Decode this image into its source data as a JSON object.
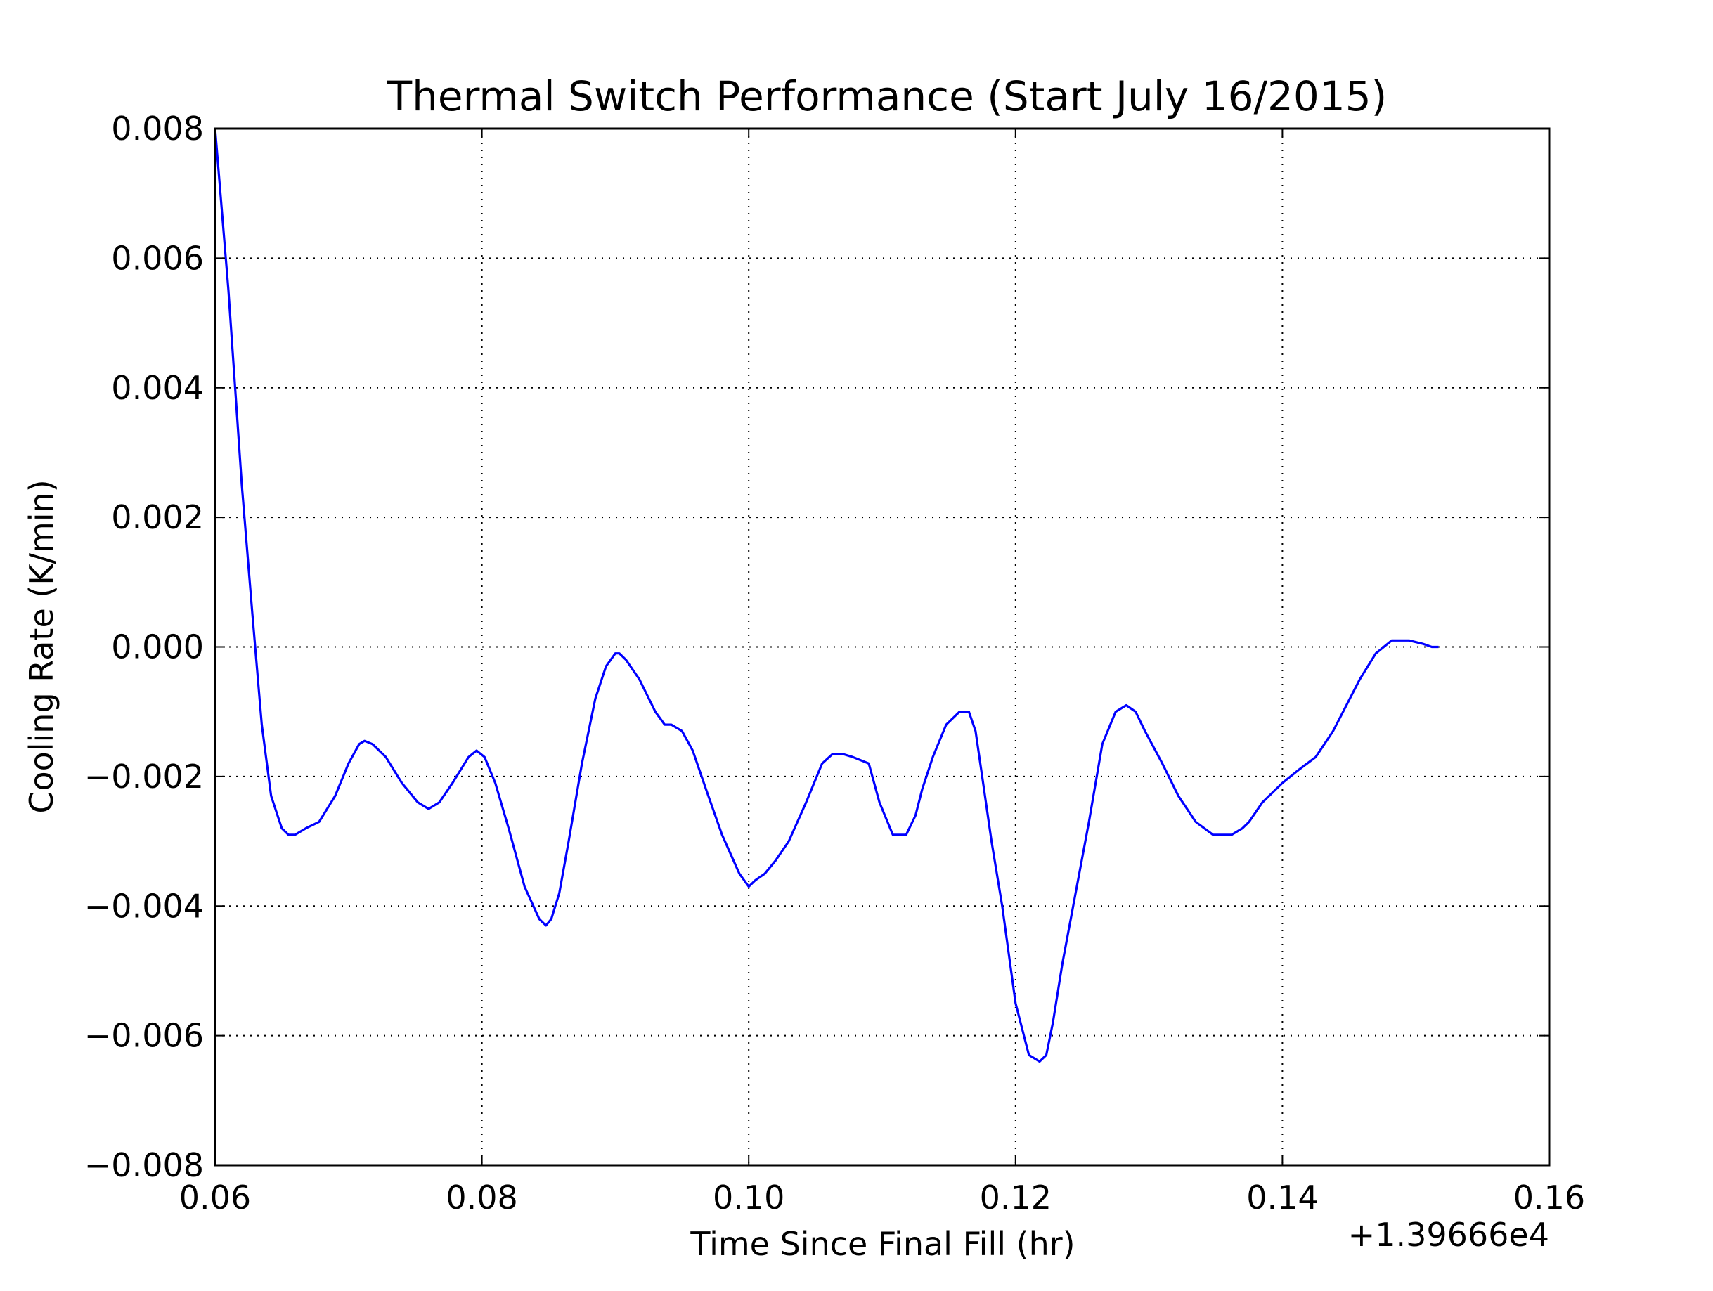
{
  "chart_data": {
    "type": "line",
    "title": "Thermal Switch Performance (Start July 16/2015)",
    "xlabel": "Time Since Final Fill (hr)",
    "ylabel": "Cooling Rate (K/min)",
    "x_offset_label": "+1.39666e4",
    "xlim": [
      0.06,
      0.16
    ],
    "ylim": [
      -0.008,
      0.008
    ],
    "x_ticks": [
      0.06,
      0.08,
      0.1,
      0.12,
      0.14,
      0.16
    ],
    "x_tick_labels": [
      "0.06",
      "0.08",
      "0.10",
      "0.12",
      "0.14",
      "0.16"
    ],
    "y_ticks": [
      -0.008,
      -0.006,
      -0.004,
      -0.002,
      0.0,
      0.002,
      0.004,
      0.006,
      0.008
    ],
    "y_tick_labels": [
      "−0.008",
      "−0.006",
      "−0.004",
      "−0.002",
      "0.000",
      "0.002",
      "0.004",
      "0.006",
      "0.008"
    ],
    "grid": true,
    "series": [
      {
        "color": "#0000ff",
        "x": [
          0.06,
          0.061,
          0.062,
          0.0628,
          0.0635,
          0.0642,
          0.065,
          0.0655,
          0.066,
          0.0668,
          0.0678,
          0.069,
          0.07,
          0.0708,
          0.0712,
          0.0718,
          0.0728,
          0.074,
          0.0752,
          0.076,
          0.0768,
          0.0778,
          0.079,
          0.0796,
          0.0802,
          0.081,
          0.082,
          0.0832,
          0.0843,
          0.0848,
          0.0852,
          0.0858,
          0.0865,
          0.0875,
          0.0885,
          0.0893,
          0.09,
          0.0903,
          0.0908,
          0.0918,
          0.093,
          0.0937,
          0.0942,
          0.095,
          0.0958,
          0.0968,
          0.098,
          0.0993,
          0.1,
          0.1005,
          0.1012,
          0.102,
          0.103,
          0.1043,
          0.1055,
          0.1063,
          0.107,
          0.1078,
          0.109,
          0.1098,
          0.1108,
          0.1118,
          0.1125,
          0.113,
          0.1138,
          0.1148,
          0.1158,
          0.1165,
          0.117,
          0.1175,
          0.1182,
          0.119,
          0.12,
          0.121,
          0.1218,
          0.1223,
          0.1228,
          0.1235,
          0.1245,
          0.1255,
          0.1265,
          0.1275,
          0.1283,
          0.129,
          0.1297,
          0.131,
          0.1322,
          0.1335,
          0.1348,
          0.1362,
          0.137,
          0.1375,
          0.1385,
          0.14,
          0.1412,
          0.1425,
          0.1438,
          0.1448,
          0.1458,
          0.147,
          0.1482,
          0.1495,
          0.1505,
          0.1512,
          0.1517
        ],
        "y": [
          0.008,
          0.0055,
          0.0025,
          0.0005,
          -0.0012,
          -0.0023,
          -0.0028,
          -0.0029,
          -0.0029,
          -0.0028,
          -0.0027,
          -0.0023,
          -0.0018,
          -0.0015,
          -0.00145,
          -0.0015,
          -0.0017,
          -0.0021,
          -0.0024,
          -0.0025,
          -0.0024,
          -0.0021,
          -0.0017,
          -0.0016,
          -0.0017,
          -0.0021,
          -0.0028,
          -0.0037,
          -0.0042,
          -0.0043,
          -0.0042,
          -0.0038,
          -0.003,
          -0.0018,
          -0.0008,
          -0.0003,
          -0.0001,
          -0.0001,
          -0.0002,
          -0.0005,
          -0.001,
          -0.0012,
          -0.0012,
          -0.0013,
          -0.0016,
          -0.0022,
          -0.0029,
          -0.0035,
          -0.0037,
          -0.0036,
          -0.0035,
          -0.0033,
          -0.003,
          -0.0024,
          -0.0018,
          -0.00165,
          -0.00165,
          -0.0017,
          -0.0018,
          -0.0024,
          -0.0029,
          -0.0029,
          -0.0026,
          -0.0022,
          -0.0017,
          -0.0012,
          -0.001,
          -0.001,
          -0.0013,
          -0.002,
          -0.003,
          -0.004,
          -0.0055,
          -0.0063,
          -0.0064,
          -0.0063,
          -0.0058,
          -0.0049,
          -0.0038,
          -0.0027,
          -0.0015,
          -0.001,
          -0.0009,
          -0.001,
          -0.0013,
          -0.0018,
          -0.0023,
          -0.0027,
          -0.0029,
          -0.0029,
          -0.0028,
          -0.0027,
          -0.0024,
          -0.0021,
          -0.0019,
          -0.0017,
          -0.0013,
          -0.0009,
          -0.0005,
          -0.0001,
          0.0001,
          0.0001,
          5e-05,
          0.0,
          0.0
        ]
      }
    ]
  }
}
